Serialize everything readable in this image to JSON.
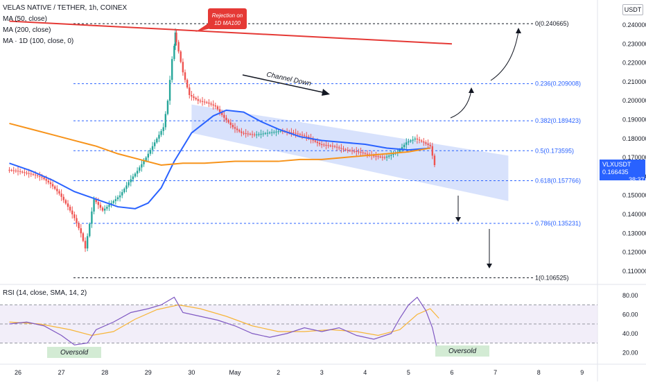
{
  "header": {
    "title": "VELAS NATIVE / TETHER, 1h, COINEX",
    "ma1": "MA (50, close)",
    "ma2": "MA (200, close)",
    "ma3": "MA · 1D (100, close, 0)"
  },
  "currency_label": "USDT",
  "price_tag": {
    "symbol": "VLXUSDT",
    "price": "0.166435",
    "countdown": "38:37"
  },
  "annotations": {
    "rejection": [
      "Rejection on",
      "1D MA100"
    ],
    "channel": "Channel Down",
    "oversold_1": "Oversold",
    "oversold_2": "Oversold"
  },
  "rsi": {
    "label": "RSI (14, close, SMA, 14, 2)",
    "ticks": [
      "80.00",
      "60.00",
      "40.00",
      "20.00"
    ]
  },
  "colors": {
    "up": "#26a69a",
    "down": "#ef5350",
    "ma50": "#2962ff",
    "ma200": "#f7931a",
    "ma1d100": "#e53935",
    "fib": "#2962ff",
    "channel": "#c7d6fb",
    "rsi": "#7e57c2",
    "rsi_ma": "#f7b538"
  },
  "chart_data": {
    "type": "candlestick",
    "title": "VELAS NATIVE / TETHER, 1h, COINEX",
    "y_axis": {
      "min": 0.1,
      "max": 0.25,
      "scale": "linear",
      "ticks": [
        "0.110000",
        "0.120000",
        "0.130000",
        "0.140000",
        "0.150000",
        "0.160000",
        "0.170000",
        "0.180000",
        "0.190000",
        "0.200000",
        "0.210000",
        "0.220000",
        "0.230000",
        "0.240000"
      ]
    },
    "x_axis": {
      "ticks": [
        "26",
        "27",
        "28",
        "29",
        "30",
        "May",
        "2",
        "3",
        "4",
        "5",
        "6",
        "7",
        "8",
        "9"
      ]
    },
    "fib_levels": [
      {
        "label": "0(0.240665)",
        "value": 0.240665
      },
      {
        "label": "0.236(0.209008)",
        "value": 0.209008
      },
      {
        "label": "0.382(0.189423)",
        "value": 0.189423
      },
      {
        "label": "0.5(0.173595)",
        "value": 0.173595
      },
      {
        "label": "0.618(0.157766)",
        "value": 0.157766
      },
      {
        "label": "0.786(0.135231)",
        "value": 0.135231
      },
      {
        "label": "1(0.106525)",
        "value": 0.106525
      }
    ],
    "price_path": [
      [
        25.8,
        0.1635
      ],
      [
        26.0,
        0.163
      ],
      [
        26.2,
        0.162
      ],
      [
        26.4,
        0.161
      ],
      [
        26.6,
        0.1595
      ],
      [
        26.8,
        0.156
      ],
      [
        27.0,
        0.151
      ],
      [
        27.2,
        0.144
      ],
      [
        27.35,
        0.138
      ],
      [
        27.5,
        0.13
      ],
      [
        27.6,
        0.122
      ],
      [
        27.7,
        0.135
      ],
      [
        27.8,
        0.148
      ],
      [
        28.0,
        0.142
      ],
      [
        28.2,
        0.146
      ],
      [
        28.4,
        0.15
      ],
      [
        28.6,
        0.157
      ],
      [
        28.8,
        0.163
      ],
      [
        29.0,
        0.17
      ],
      [
        29.2,
        0.178
      ],
      [
        29.4,
        0.186
      ],
      [
        29.5,
        0.2
      ],
      [
        29.6,
        0.222
      ],
      [
        29.65,
        0.236
      ],
      [
        29.75,
        0.226
      ],
      [
        29.85,
        0.215
      ],
      [
        30.0,
        0.203
      ],
      [
        30.2,
        0.2
      ],
      [
        30.4,
        0.199
      ],
      [
        30.6,
        0.197
      ],
      [
        30.8,
        0.191
      ],
      [
        31.0,
        0.186
      ],
      [
        31.2,
        0.183
      ],
      [
        31.5,
        0.182
      ],
      [
        31.8,
        0.183
      ],
      [
        32.1,
        0.184
      ],
      [
        32.4,
        0.183
      ],
      [
        32.7,
        0.181
      ],
      [
        33.0,
        0.177
      ],
      [
        33.3,
        0.176
      ],
      [
        33.6,
        0.174
      ],
      [
        33.9,
        0.173
      ],
      [
        34.2,
        0.171
      ],
      [
        34.5,
        0.17
      ],
      [
        34.8,
        0.173
      ],
      [
        35.0,
        0.178
      ],
      [
        35.2,
        0.18
      ],
      [
        35.4,
        0.178
      ],
      [
        35.55,
        0.176
      ],
      [
        35.65,
        0.166
      ]
    ],
    "series": [
      {
        "name": "MA (50, close)",
        "values": [
          [
            25.8,
            0.167
          ],
          [
            26.3,
            0.163
          ],
          [
            26.8,
            0.158
          ],
          [
            27.3,
            0.152
          ],
          [
            27.8,
            0.148
          ],
          [
            28.3,
            0.144
          ],
          [
            28.7,
            0.143
          ],
          [
            29.0,
            0.146
          ],
          [
            29.3,
            0.154
          ],
          [
            29.6,
            0.168
          ],
          [
            30.0,
            0.183
          ],
          [
            30.5,
            0.192
          ],
          [
            30.8,
            0.195
          ],
          [
            31.2,
            0.194
          ],
          [
            31.6,
            0.189
          ],
          [
            32.0,
            0.185
          ],
          [
            32.5,
            0.181
          ],
          [
            33.0,
            0.179
          ],
          [
            33.5,
            0.178
          ],
          [
            34.0,
            0.177
          ],
          [
            34.5,
            0.175
          ],
          [
            35.0,
            0.174
          ],
          [
            35.5,
            0.175
          ]
        ]
      },
      {
        "name": "MA (200, close)",
        "values": [
          [
            25.8,
            0.188
          ],
          [
            26.3,
            0.185
          ],
          [
            26.8,
            0.182
          ],
          [
            27.3,
            0.179
          ],
          [
            27.8,
            0.176
          ],
          [
            28.3,
            0.172
          ],
          [
            28.8,
            0.169
          ],
          [
            29.3,
            0.166
          ],
          [
            29.8,
            0.167
          ],
          [
            30.3,
            0.167
          ],
          [
            31.0,
            0.168
          ],
          [
            31.5,
            0.168
          ],
          [
            32.0,
            0.168
          ],
          [
            32.5,
            0.169
          ],
          [
            33.0,
            0.169
          ],
          [
            33.5,
            0.17
          ],
          [
            34.0,
            0.171
          ],
          [
            34.5,
            0.172
          ],
          [
            35.0,
            0.173
          ],
          [
            35.5,
            0.175
          ]
        ]
      },
      {
        "name": "MA · 1D (100, close, 0)",
        "values": [
          [
            25.8,
            0.242
          ],
          [
            36.0,
            0.23
          ]
        ]
      }
    ],
    "channel": {
      "upper": [
        [
          30.0,
          0.198
        ],
        [
          37.3,
          0.171
        ]
      ],
      "lower": [
        [
          30.0,
          0.183
        ],
        [
          37.3,
          0.147
        ]
      ]
    },
    "rsi_range": [
      10,
      90
    ],
    "rsi_series": [
      [
        25.8,
        50
      ],
      [
        26.2,
        52
      ],
      [
        26.6,
        48
      ],
      [
        27.0,
        38
      ],
      [
        27.3,
        28
      ],
      [
        27.6,
        30
      ],
      [
        27.8,
        44
      ],
      [
        28.2,
        52
      ],
      [
        28.6,
        62
      ],
      [
        29.0,
        66
      ],
      [
        29.3,
        70
      ],
      [
        29.6,
        78
      ],
      [
        29.8,
        62
      ],
      [
        30.2,
        58
      ],
      [
        30.6,
        54
      ],
      [
        31.0,
        48
      ],
      [
        31.4,
        40
      ],
      [
        31.8,
        36
      ],
      [
        32.2,
        40
      ],
      [
        32.6,
        46
      ],
      [
        33.0,
        42
      ],
      [
        33.4,
        46
      ],
      [
        33.8,
        38
      ],
      [
        34.2,
        34
      ],
      [
        34.6,
        40
      ],
      [
        34.8,
        56
      ],
      [
        35.0,
        70
      ],
      [
        35.2,
        78
      ],
      [
        35.4,
        64
      ],
      [
        35.55,
        46
      ],
      [
        35.65,
        26
      ]
    ],
    "rsi_ma_series": [
      [
        25.8,
        52
      ],
      [
        26.5,
        50
      ],
      [
        27.2,
        44
      ],
      [
        27.7,
        38
      ],
      [
        28.2,
        42
      ],
      [
        28.7,
        55
      ],
      [
        29.2,
        65
      ],
      [
        29.7,
        70
      ],
      [
        30.2,
        66
      ],
      [
        30.8,
        58
      ],
      [
        31.4,
        48
      ],
      [
        32.0,
        42
      ],
      [
        32.6,
        42
      ],
      [
        33.2,
        44
      ],
      [
        33.8,
        42
      ],
      [
        34.3,
        38
      ],
      [
        34.8,
        44
      ],
      [
        35.2,
        60
      ],
      [
        35.5,
        66
      ],
      [
        35.7,
        56
      ]
    ]
  }
}
